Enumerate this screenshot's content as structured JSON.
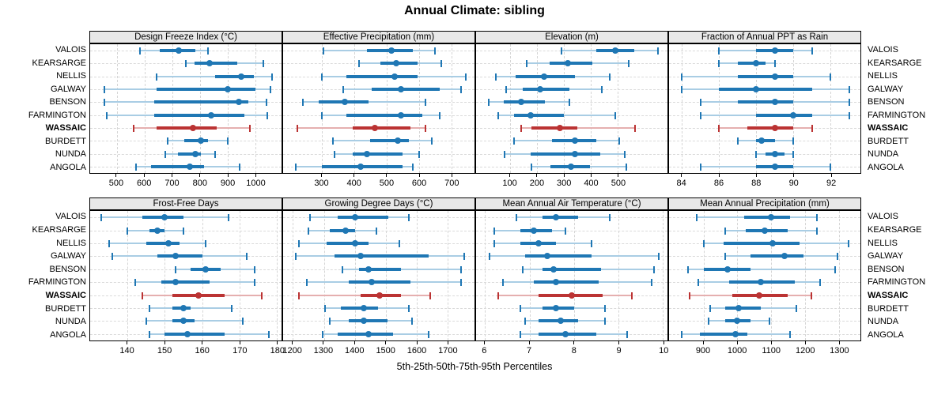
{
  "title": "Annual Climate: sibling",
  "caption": "5th-25th-50th-75th-95th Percentiles",
  "sites": [
    {
      "name": "VALOIS",
      "bold": false
    },
    {
      "name": "KEARSARGE",
      "bold": false
    },
    {
      "name": "NELLIS",
      "bold": false
    },
    {
      "name": "GALWAY",
      "bold": false
    },
    {
      "name": "BENSON",
      "bold": false
    },
    {
      "name": "FARMINGTON",
      "bold": false
    },
    {
      "name": "WASSAIC",
      "bold": true
    },
    {
      "name": "BURDETT",
      "bold": false
    },
    {
      "name": "NUNDA",
      "bold": false
    },
    {
      "name": "ANGOLA",
      "bold": false
    }
  ],
  "colors": {
    "blue": "#1f77b4",
    "light_blue": "#a9cde4",
    "red": "#bb3333",
    "light_red": "#e5afaf",
    "grid": "#d5d5d5",
    "strip_bg": "#e8e8e8",
    "border": "#000000",
    "text": "#000000"
  },
  "chart_data": {
    "type": "scatter",
    "subtype": "percentile-dot-whisker-trellis",
    "title": "Annual Climate: sibling",
    "percentiles": [
      "5th",
      "25th",
      "50th",
      "75th",
      "95th"
    ],
    "highlight_site": "WASSAIC",
    "layout": {
      "rows": 2,
      "cols": 4,
      "legend": "none",
      "grid": "dashed"
    },
    "site_order": [
      "VALOIS",
      "KEARSARGE",
      "NELLIS",
      "GALWAY",
      "BENSON",
      "FARMINGTON",
      "WASSAIC",
      "BURDETT",
      "NUNDA",
      "ANGOLA"
    ],
    "panels": [
      {
        "title": "Design Freeze Index (°C)",
        "xlim": [
          404,
          1095
        ],
        "ticks": [
          500,
          600,
          700,
          800,
          900,
          1000
        ],
        "values": [
          [
            585,
            655,
            725,
            785,
            830
          ],
          [
            750,
            780,
            835,
            935,
            1030
          ],
          [
            645,
            855,
            950,
            995,
            1060
          ],
          [
            455,
            645,
            900,
            1000,
            1055
          ],
          [
            455,
            635,
            940,
            975,
            1040
          ],
          [
            465,
            635,
            840,
            960,
            1045
          ],
          [
            560,
            645,
            775,
            860,
            980
          ],
          [
            685,
            745,
            805,
            830,
            900
          ],
          [
            675,
            720,
            785,
            805,
            855
          ],
          [
            570,
            625,
            765,
            815,
            945
          ]
        ]
      },
      {
        "title": "Effective Precipitation (mm)",
        "xlim": [
          180,
          772
        ],
        "ticks": [
          300,
          400,
          500,
          600,
          700
        ],
        "values": [
          [
            305,
            440,
            515,
            580,
            650
          ],
          [
            415,
            480,
            530,
            595,
            670
          ],
          [
            300,
            375,
            525,
            595,
            745
          ],
          [
            365,
            455,
            545,
            665,
            730
          ],
          [
            240,
            290,
            370,
            445,
            620
          ],
          [
            300,
            375,
            545,
            610,
            665
          ],
          [
            225,
            395,
            465,
            575,
            620
          ],
          [
            335,
            450,
            535,
            570,
            640
          ],
          [
            340,
            395,
            440,
            550,
            600
          ],
          [
            220,
            300,
            420,
            550,
            580
          ]
        ]
      },
      {
        "title": "Elevation (m)",
        "xlim": [
          -27,
          684
        ],
        "ticks": [
          100,
          200,
          300,
          400,
          500
        ],
        "values": [
          [
            290,
            420,
            490,
            560,
            650
          ],
          [
            160,
            245,
            315,
            405,
            540
          ],
          [
            45,
            120,
            225,
            340,
            470
          ],
          [
            85,
            145,
            210,
            320,
            440
          ],
          [
            20,
            75,
            140,
            230,
            320
          ],
          [
            55,
            115,
            175,
            300,
            490
          ],
          [
            140,
            180,
            285,
            350,
            565
          ],
          [
            115,
            255,
            340,
            420,
            505
          ],
          [
            80,
            175,
            340,
            435,
            525
          ],
          [
            180,
            250,
            325,
            395,
            530
          ]
        ]
      },
      {
        "title": "Fraction of Annual PPT as Rain",
        "xlim": [
          83.3,
          93.6
        ],
        "ticks": [
          84,
          86,
          88,
          90,
          92
        ],
        "values": [
          [
            86,
            88,
            89,
            90,
            91
          ],
          [
            86,
            87,
            88,
            88.5,
            89
          ],
          [
            84,
            87,
            89,
            90,
            92
          ],
          [
            84,
            86,
            88,
            91,
            93
          ],
          [
            85,
            87,
            89,
            90,
            93
          ],
          [
            85,
            88,
            90,
            91,
            93
          ],
          [
            86,
            87.5,
            89,
            90,
            91
          ],
          [
            87,
            88,
            88.3,
            89,
            90
          ],
          [
            88,
            88.5,
            89,
            89.5,
            90
          ],
          [
            85,
            88,
            89,
            90,
            92
          ]
        ]
      },
      {
        "title": "Frost-Free Days",
        "xlim": [
          130,
          181.3
        ],
        "ticks": [
          140,
          150,
          160,
          170,
          180
        ],
        "values": [
          [
            133,
            144,
            150,
            155,
            167
          ],
          [
            140,
            146,
            148,
            150,
            155
          ],
          [
            135,
            145,
            151,
            154,
            161
          ],
          [
            136,
            148,
            153,
            160,
            172
          ],
          [
            153,
            157,
            161,
            165,
            174
          ],
          [
            142,
            149,
            153,
            162,
            174
          ],
          [
            144,
            152,
            159,
            166,
            176
          ],
          [
            146,
            152,
            155,
            157,
            168
          ],
          [
            145,
            152,
            155,
            158,
            171
          ],
          [
            146,
            150,
            156,
            166,
            178
          ]
        ]
      },
      {
        "title": "Growing Degree Days (°C)",
        "xlim": [
          1168,
          1788
        ],
        "ticks": [
          1200,
          1300,
          1400,
          1500,
          1600,
          1700
        ],
        "values": [
          [
            1255,
            1345,
            1400,
            1510,
            1575
          ],
          [
            1250,
            1320,
            1370,
            1400,
            1470
          ],
          [
            1220,
            1310,
            1400,
            1445,
            1545
          ],
          [
            1210,
            1335,
            1420,
            1640,
            1755
          ],
          [
            1360,
            1415,
            1445,
            1550,
            1745
          ],
          [
            1245,
            1380,
            1455,
            1580,
            1745
          ],
          [
            1220,
            1420,
            1480,
            1550,
            1645
          ],
          [
            1305,
            1355,
            1430,
            1475,
            1575
          ],
          [
            1320,
            1380,
            1430,
            1505,
            1585
          ],
          [
            1295,
            1345,
            1445,
            1525,
            1640
          ]
        ]
      },
      {
        "title": "Mean Annual Air Temperature (°C)",
        "xlim": [
          5.8,
          10.1
        ],
        "ticks": [
          6,
          7,
          8,
          9,
          10
        ],
        "values": [
          [
            6.7,
            7.3,
            7.6,
            8.1,
            8.8
          ],
          [
            6.2,
            6.8,
            7.1,
            7.5,
            7.8
          ],
          [
            6.2,
            6.8,
            7.2,
            7.6,
            8.4
          ],
          [
            6.1,
            6.9,
            7.4,
            8.4,
            9.9
          ],
          [
            6.85,
            7.3,
            7.55,
            8.6,
            9.8
          ],
          [
            6.4,
            7.1,
            7.6,
            8.55,
            9.75
          ],
          [
            6.3,
            7.2,
            7.95,
            8.65,
            9.3
          ],
          [
            6.8,
            7.3,
            7.6,
            8.0,
            8.7
          ],
          [
            6.9,
            7.2,
            7.7,
            8.1,
            8.7
          ],
          [
            6.8,
            7.2,
            7.8,
            8.5,
            9.2
          ]
        ]
      },
      {
        "title": "Mean Annual Precipitation (mm)",
        "xlim": [
          798,
          1364
        ],
        "ticks": [
          900,
          1000,
          1100,
          1200,
          1300
        ],
        "values": [
          [
            880,
            1020,
            1100,
            1155,
            1235
          ],
          [
            965,
            1025,
            1080,
            1150,
            1235
          ],
          [
            900,
            960,
            1105,
            1185,
            1330
          ],
          [
            965,
            1040,
            1140,
            1195,
            1295
          ],
          [
            855,
            900,
            970,
            1040,
            1290
          ],
          [
            885,
            975,
            1070,
            1170,
            1245
          ],
          [
            860,
            985,
            1065,
            1150,
            1220
          ],
          [
            920,
            965,
            1005,
            1070,
            1175
          ],
          [
            915,
            965,
            1000,
            1040,
            1095
          ],
          [
            835,
            890,
            995,
            1030,
            1155
          ]
        ]
      }
    ]
  }
}
